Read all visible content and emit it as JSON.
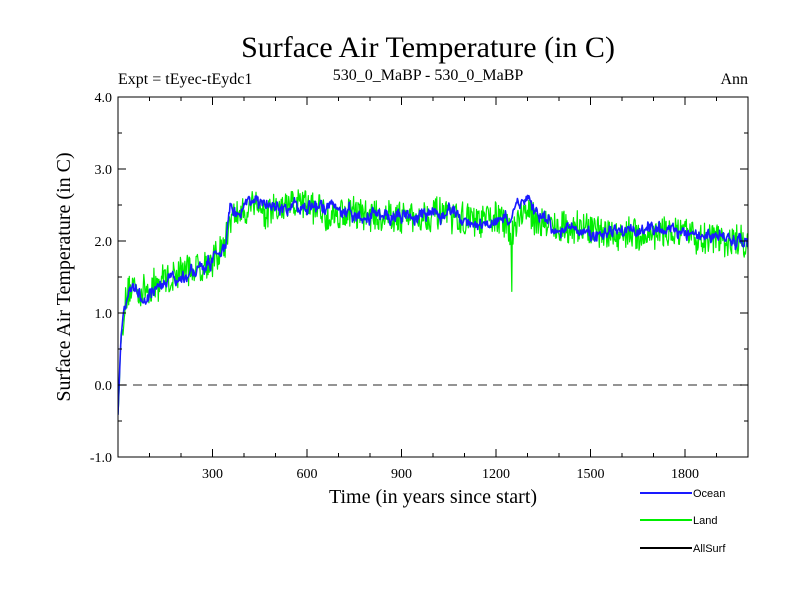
{
  "chart_data": {
    "type": "line",
    "title": "Surface Air Temperature (in C)",
    "subtitle_left": "Expt = tEyec-tEydc1",
    "subtitle_center": "530_0_MaBP - 530_0_MaBP",
    "subtitle_right": "Ann",
    "xlabel": "Time (in years since start)",
    "ylabel": "Surface Air Temperature (in C)",
    "xlim": [
      0,
      2000
    ],
    "ylim": [
      -1.0,
      4.0
    ],
    "x_ticks": [
      300,
      600,
      900,
      1200,
      1500,
      1800
    ],
    "x_tick_labels": [
      "300",
      "600",
      "900",
      "1200",
      "1500",
      "1800"
    ],
    "y_ticks": [
      -1.0,
      0.0,
      1.0,
      2.0,
      3.0,
      4.0
    ],
    "y_tick_labels": [
      "-1.0",
      "0.0",
      "1.0",
      "2.0",
      "3.0",
      "4.0"
    ],
    "zero_line": 0.0,
    "legend_position": "bottom-right, outside plot",
    "series": [
      {
        "name": "Ocean",
        "color": "#1a1aff",
        "x": [
          0,
          5,
          10,
          20,
          30,
          50,
          80,
          100,
          150,
          200,
          250,
          300,
          340,
          355,
          380,
          420,
          460,
          500,
          550,
          600,
          650,
          700,
          750,
          800,
          850,
          900,
          950,
          1000,
          1050,
          1100,
          1150,
          1200,
          1240,
          1280,
          1300,
          1350,
          1400,
          1450,
          1500,
          1550,
          1600,
          1650,
          1700,
          1750,
          1800,
          1850,
          1900,
          1950,
          2000
        ],
        "values": [
          -0.4,
          0.2,
          0.7,
          1.1,
          1.25,
          1.35,
          1.3,
          1.32,
          1.42,
          1.5,
          1.6,
          1.7,
          1.85,
          2.35,
          2.45,
          2.55,
          2.5,
          2.45,
          2.5,
          2.5,
          2.4,
          2.45,
          2.4,
          2.35,
          2.4,
          2.35,
          2.35,
          2.4,
          2.3,
          2.3,
          2.25,
          2.3,
          2.2,
          2.4,
          2.45,
          2.3,
          2.2,
          2.2,
          2.15,
          2.1,
          2.1,
          2.15,
          2.1,
          2.15,
          2.1,
          2.05,
          2.05,
          2.0,
          2.0
        ]
      },
      {
        "name": "Land",
        "color": "#00ee00",
        "x": [
          0,
          5,
          10,
          20,
          30,
          50,
          80,
          100,
          150,
          200,
          250,
          300,
          340,
          355,
          380,
          420,
          460,
          500,
          550,
          600,
          650,
          700,
          750,
          800,
          850,
          900,
          950,
          1000,
          1050,
          1100,
          1150,
          1200,
          1240,
          1280,
          1300,
          1350,
          1400,
          1450,
          1500,
          1550,
          1600,
          1650,
          1700,
          1750,
          1800,
          1850,
          1900,
          1950,
          2000
        ],
        "values": [
          -0.45,
          0.15,
          0.65,
          1.05,
          1.2,
          1.35,
          1.3,
          1.35,
          1.45,
          1.55,
          1.65,
          1.75,
          1.9,
          2.3,
          2.4,
          2.5,
          2.45,
          2.45,
          2.5,
          2.45,
          2.4,
          2.4,
          2.4,
          2.35,
          2.35,
          2.35,
          2.35,
          2.35,
          2.3,
          2.3,
          2.25,
          2.3,
          2.15,
          2.35,
          2.4,
          2.3,
          2.2,
          2.15,
          2.15,
          2.1,
          2.1,
          2.1,
          2.1,
          2.1,
          2.05,
          2.05,
          2.05,
          2.0,
          2.0
        ]
      },
      {
        "name": "AllSurf",
        "color": "#000000",
        "x": [],
        "values": []
      }
    ]
  }
}
